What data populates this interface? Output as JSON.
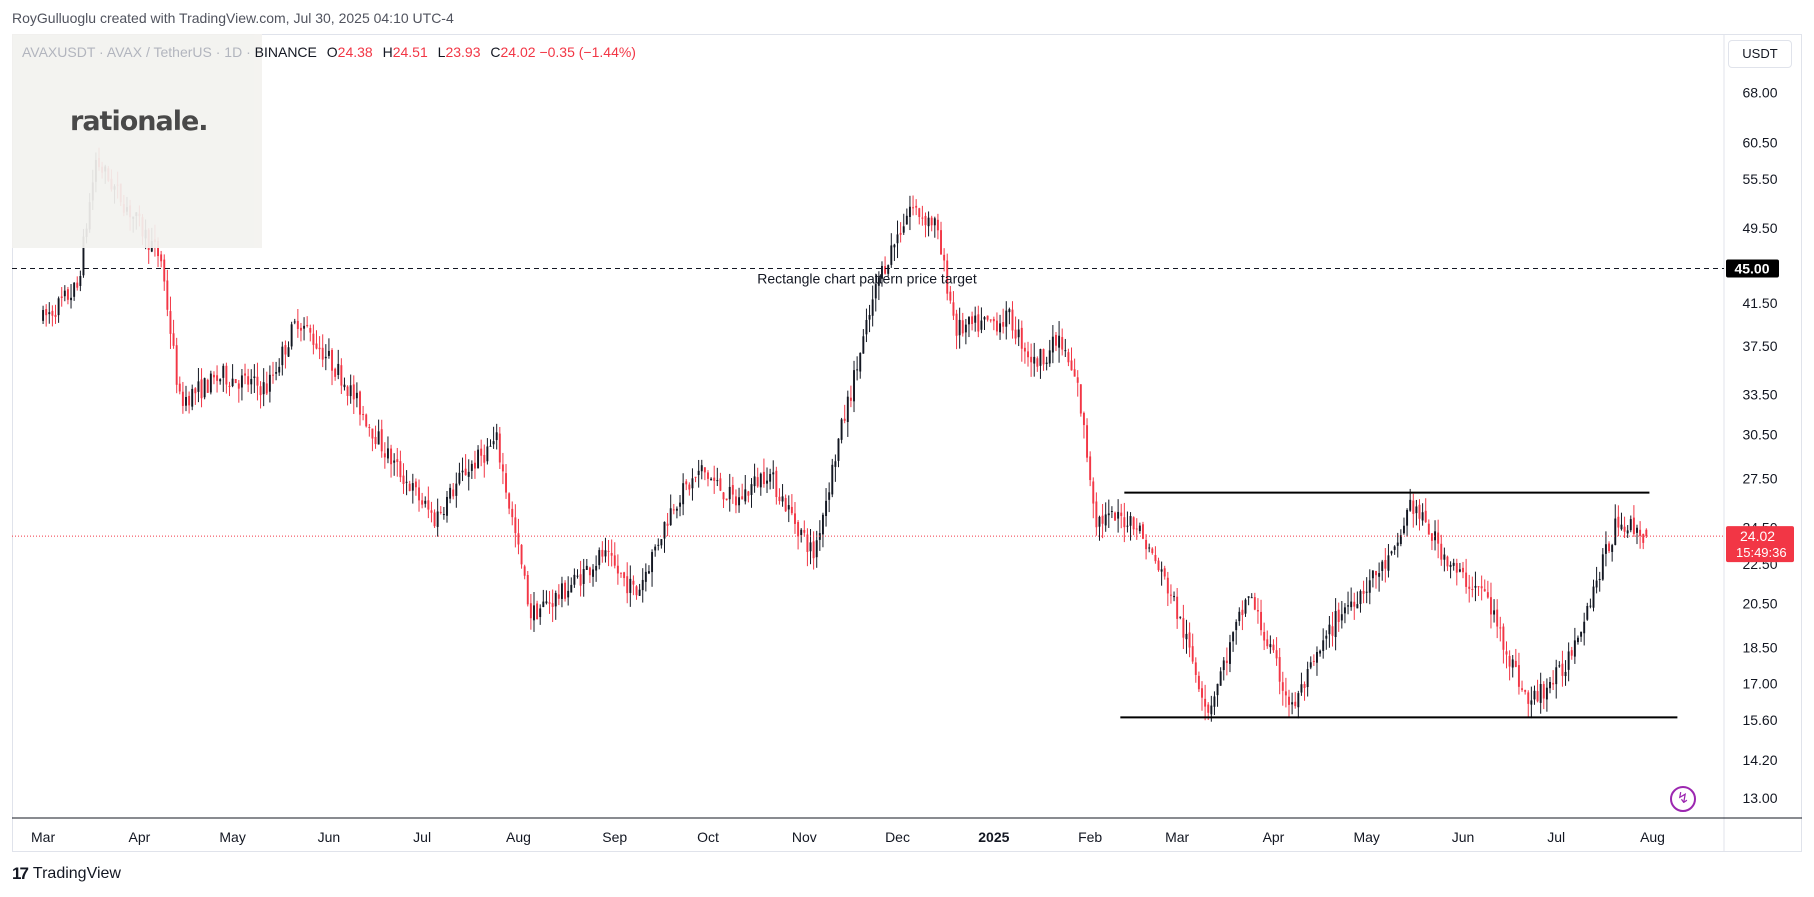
{
  "header": {
    "credit": "RoyGulluoglu created with TradingView.com, Jul 30, 2025 04:10 UTC-4"
  },
  "legend": {
    "symbol": "AVAXUSDT · AVAX / TetherUS · 1D · ",
    "exchange": "BINANCE",
    "open_label": "O",
    "open": "24.38",
    "high_label": "H",
    "high": "24.51",
    "low_label": "L",
    "low": "23.93",
    "close_label": "C",
    "close": "24.02",
    "change": "−0.35 (−1.44%)"
  },
  "watermark": {
    "logo_text": "rationale."
  },
  "axis": {
    "currency": "USDT"
  },
  "footer": {
    "brand": "TradingView"
  },
  "colors": {
    "up": "#131722",
    "down": "#f23645",
    "price_line": "#f23645",
    "label_bg": "#f23645",
    "target_bg": "#000000"
  },
  "chart_data": {
    "type": "candlestick",
    "y_axis": {
      "scale": "log",
      "ylim": [
        12.4,
        78
      ],
      "ticks": [
        "68.00",
        "60.50",
        "55.50",
        "49.50",
        "41.50",
        "37.50",
        "33.50",
        "30.50",
        "27.50",
        "24.50",
        "22.50",
        "20.50",
        "18.50",
        "17.00",
        "15.60",
        "14.20",
        "13.00"
      ]
    },
    "x_axis": {
      "ticks": [
        "Mar",
        "Apr",
        "May",
        "Jun",
        "Jul",
        "Aug",
        "Sep",
        "Oct",
        "Nov",
        "Dec",
        "2025",
        "Feb",
        "Mar",
        "Apr",
        "May",
        "Jun",
        "Jul",
        "Aug"
      ]
    },
    "price_anchors": [
      [
        "2024-03-01",
        40
      ],
      [
        "2024-03-12",
        43
      ],
      [
        "2024-03-18",
        58
      ],
      [
        "2024-03-28",
        52
      ],
      [
        "2024-04-08",
        46
      ],
      [
        "2024-04-14",
        33
      ],
      [
        "2024-04-28",
        35
      ],
      [
        "2024-05-12",
        34
      ],
      [
        "2024-05-22",
        40
      ],
      [
        "2024-06-05",
        35
      ],
      [
        "2024-06-20",
        29
      ],
      [
        "2024-07-05",
        25
      ],
      [
        "2024-07-15",
        28
      ],
      [
        "2024-07-25",
        30
      ],
      [
        "2024-08-05",
        20
      ],
      [
        "2024-08-15",
        21
      ],
      [
        "2024-08-28",
        23
      ],
      [
        "2024-09-08",
        21
      ],
      [
        "2024-09-20",
        26
      ],
      [
        "2024-09-29",
        28
      ],
      [
        "2024-10-10",
        26
      ],
      [
        "2024-10-20",
        28
      ],
      [
        "2024-11-04",
        23
      ],
      [
        "2024-11-12",
        30
      ],
      [
        "2024-11-25",
        44
      ],
      [
        "2024-12-05",
        52
      ],
      [
        "2024-12-13",
        50
      ],
      [
        "2024-12-20",
        39
      ],
      [
        "2025-01-06",
        40
      ],
      [
        "2025-01-14",
        36
      ],
      [
        "2025-01-22",
        38
      ],
      [
        "2025-01-28",
        34
      ],
      [
        "2025-02-03",
        25
      ],
      [
        "2025-02-15",
        25
      ],
      [
        "2025-02-27",
        21
      ],
      [
        "2025-03-11",
        16
      ],
      [
        "2025-03-24",
        21
      ],
      [
        "2025-04-07",
        16
      ],
      [
        "2025-04-22",
        20
      ],
      [
        "2025-05-10",
        23
      ],
      [
        "2025-05-15",
        26
      ],
      [
        "2025-05-30",
        22
      ],
      [
        "2025-06-08",
        21
      ],
      [
        "2025-06-22",
        16.2
      ],
      [
        "2025-07-03",
        17.5
      ],
      [
        "2025-07-10",
        20
      ],
      [
        "2025-07-21",
        25
      ],
      [
        "2025-07-30",
        24.02
      ]
    ],
    "last_price": "24.02",
    "countdown": "15:49:36",
    "target_price": "45.00",
    "annotations": [
      {
        "text": "Rectangle chart pattern price target",
        "price": 45.0
      }
    ],
    "rectangle": {
      "top": 26.6,
      "bottom": 15.7,
      "from": "2025-02-12",
      "to": "2025-07-31"
    }
  }
}
